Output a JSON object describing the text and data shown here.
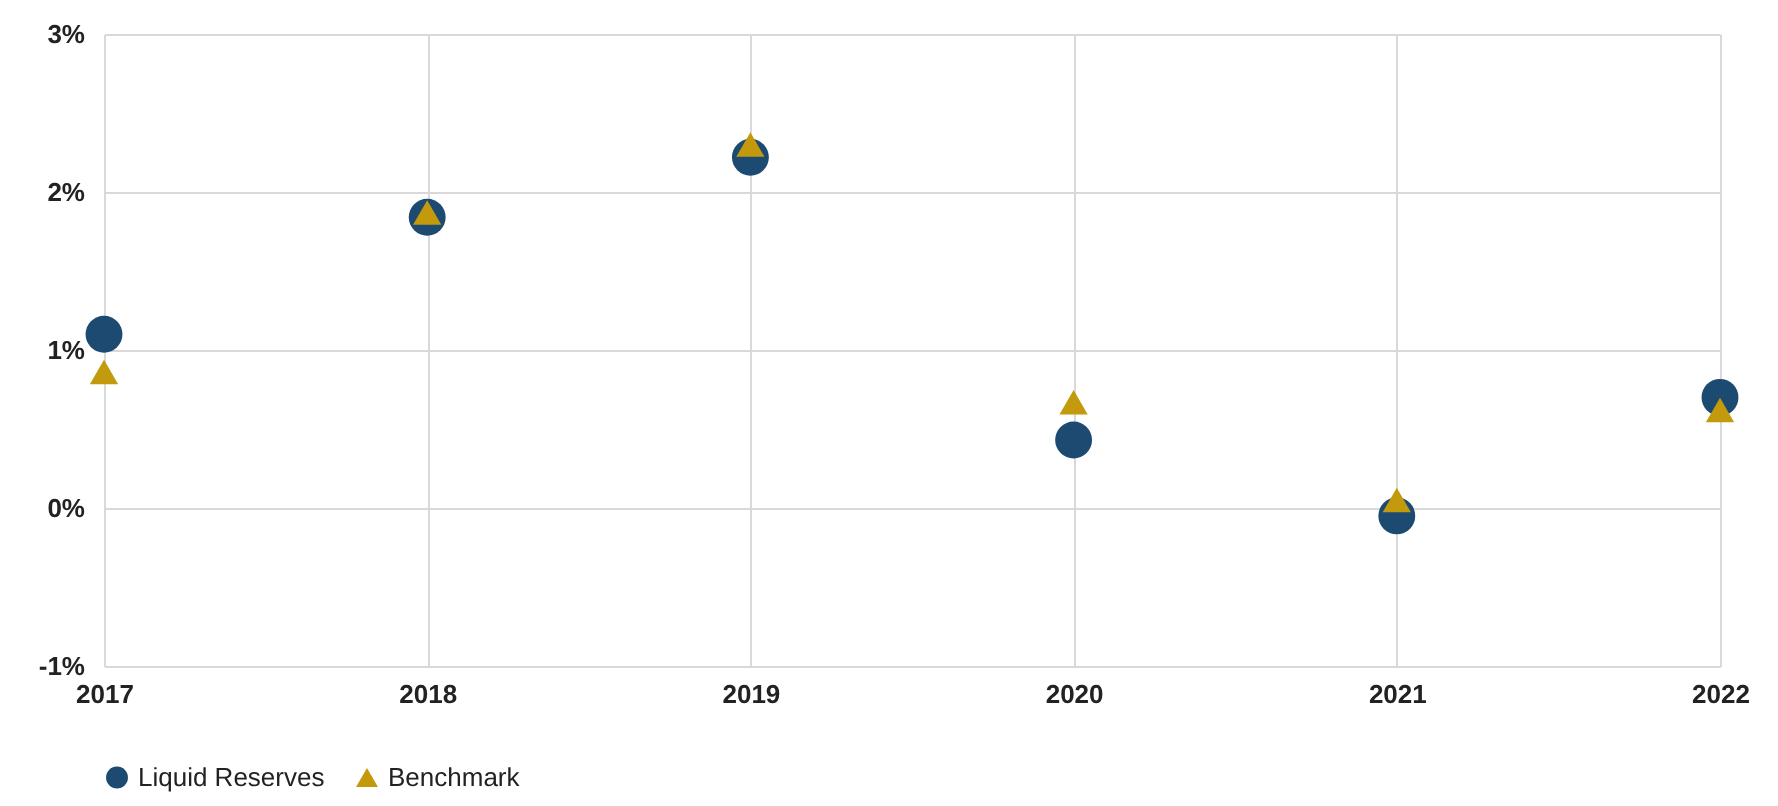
{
  "chart_data": {
    "type": "scatter",
    "x": [
      2017,
      2018,
      2019,
      2020,
      2021,
      2022
    ],
    "series": [
      {
        "name": "Liquid Reserves",
        "color": "#1c4a70",
        "marker": "circle",
        "values": [
          1.1,
          1.84,
          2.22,
          0.43,
          -0.05,
          0.7
        ]
      },
      {
        "name": "Benchmark",
        "color": "#c39a0c",
        "marker": "triangle",
        "values": [
          0.86,
          1.87,
          2.3,
          0.67,
          0.05,
          0.62
        ]
      }
    ],
    "xlim": [
      2017,
      2022
    ],
    "xticks": [
      2017,
      2018,
      2019,
      2020,
      2021,
      2022
    ],
    "ylim": [
      -1,
      3
    ],
    "yticks": [
      {
        "value": -1,
        "label": "-1%"
      },
      {
        "value": 0,
        "label": "0%"
      },
      {
        "value": 1,
        "label": "1%"
      },
      {
        "value": 2,
        "label": "2%"
      },
      {
        "value": 3,
        "label": "3%"
      }
    ],
    "grid": true,
    "legend": "bottom"
  }
}
